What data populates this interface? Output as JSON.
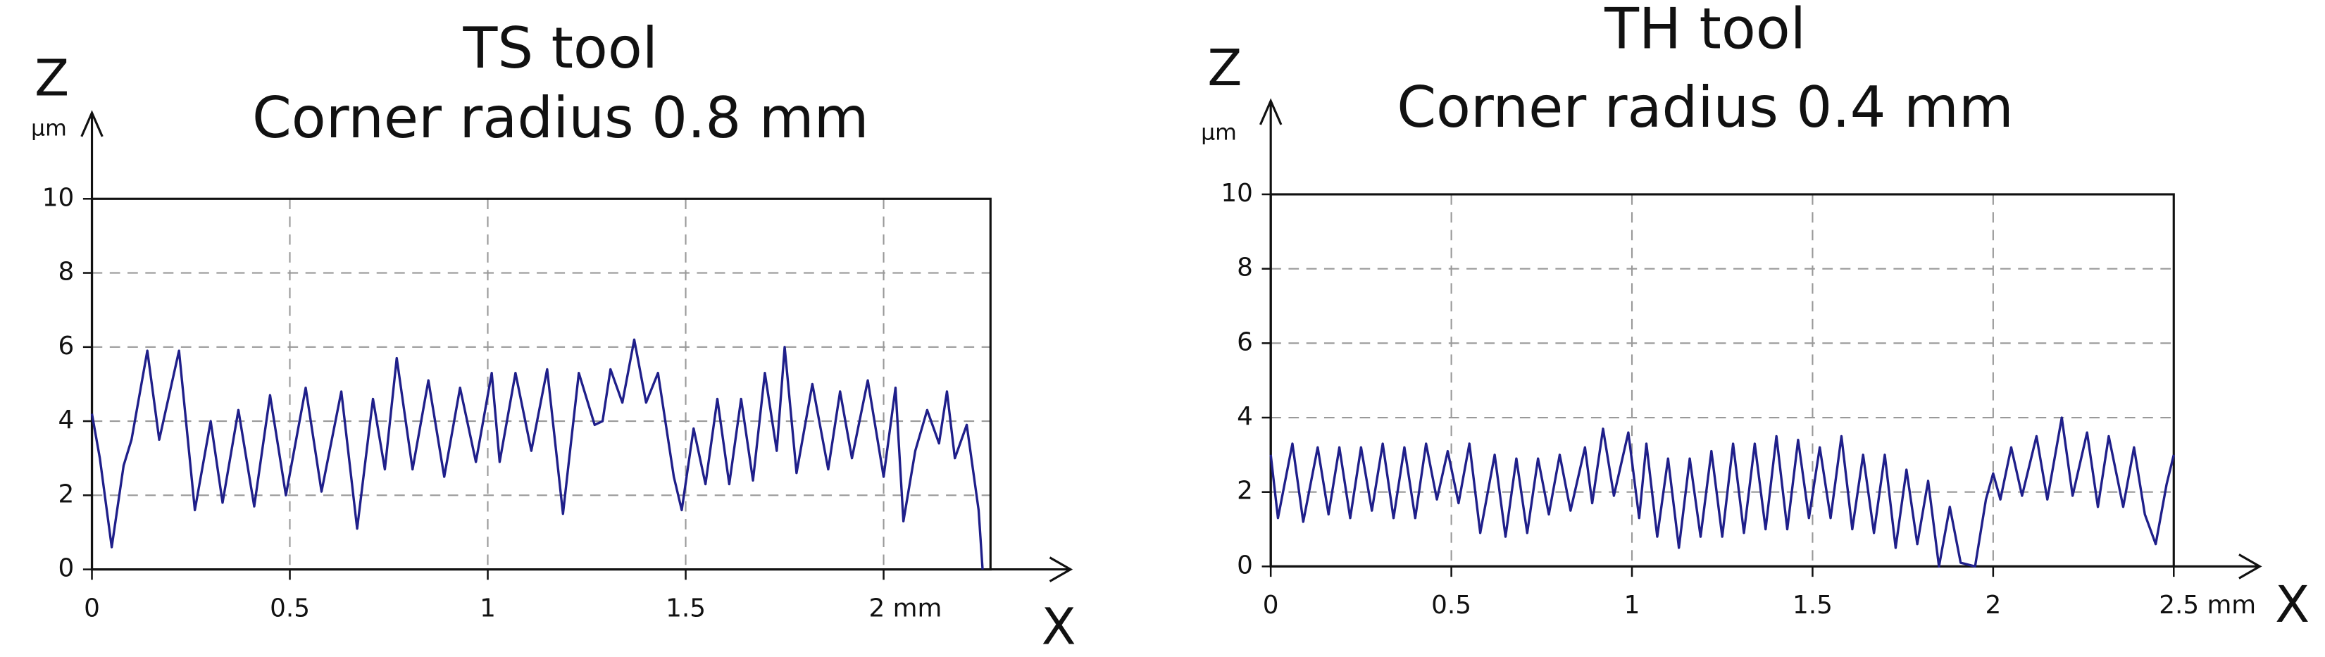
{
  "chart_data": [
    {
      "type": "line",
      "title": "TS tool",
      "subtitle": "Corner radius 0.8 mm",
      "y_label": "Z",
      "y_unit": "µm",
      "x_label": "X",
      "color": "#1f1f8a",
      "grid": true,
      "xlim": [
        0,
        2.27
      ],
      "ylim": [
        0,
        10
      ],
      "xticks": [
        0,
        0.5,
        1,
        1.5,
        {
          "value": 2,
          "label": "2 mm"
        }
      ],
      "yticks": [
        0,
        2,
        4,
        6,
        8,
        10
      ],
      "x": [
        0,
        0.02,
        0.05,
        0.08,
        0.1,
        0.14,
        0.17,
        0.22,
        0.26,
        0.3,
        0.33,
        0.37,
        0.41,
        0.45,
        0.49,
        0.54,
        0.58,
        0.63,
        0.67,
        0.71,
        0.74,
        0.77,
        0.81,
        0.85,
        0.89,
        0.93,
        0.97,
        1.01,
        1.03,
        1.07,
        1.11,
        1.15,
        1.19,
        1.23,
        1.27,
        1.29,
        1.31,
        1.34,
        1.37,
        1.4,
        1.43,
        1.47,
        1.49,
        1.52,
        1.55,
        1.58,
        1.61,
        1.64,
        1.67,
        1.7,
        1.73,
        1.75,
        1.78,
        1.82,
        1.86,
        1.89,
        1.92,
        1.96,
        2.0,
        2.03,
        2.05,
        2.08,
        2.11,
        2.14,
        2.16,
        2.18,
        2.21,
        2.24,
        2.25
      ],
      "values": [
        4.2,
        3.0,
        0.6,
        2.8,
        3.5,
        5.9,
        3.5,
        5.9,
        1.6,
        4.0,
        1.8,
        4.3,
        1.7,
        4.7,
        2.0,
        4.9,
        2.1,
        4.8,
        1.1,
        4.6,
        2.7,
        5.7,
        2.7,
        5.1,
        2.5,
        4.9,
        2.9,
        5.3,
        2.9,
        5.3,
        3.2,
        5.4,
        1.5,
        5.3,
        3.9,
        4.0,
        5.4,
        4.5,
        6.2,
        4.5,
        5.3,
        2.5,
        1.6,
        3.8,
        2.3,
        4.6,
        2.3,
        4.6,
        2.4,
        5.3,
        3.2,
        6.0,
        2.6,
        5.0,
        2.7,
        4.8,
        3.0,
        5.1,
        2.5,
        4.9,
        1.3,
        3.2,
        4.3,
        3.4,
        4.8,
        3.0,
        3.9,
        1.6,
        0.0
      ]
    },
    {
      "type": "line",
      "title": "TH tool",
      "subtitle": "Corner radius 0.4 mm",
      "y_label": "Z",
      "y_unit": "µm",
      "x_label": "X",
      "color": "#1f1f8a",
      "grid": true,
      "xlim": [
        0,
        2.5
      ],
      "ylim": [
        0,
        10
      ],
      "xticks": [
        0,
        0.5,
        1,
        1.5,
        2,
        {
          "value": 2.5,
          "label": "2.5 mm"
        }
      ],
      "yticks": [
        0,
        2,
        4,
        6,
        8,
        10
      ],
      "x": [
        0,
        0.02,
        0.06,
        0.09,
        0.13,
        0.16,
        0.19,
        0.22,
        0.25,
        0.28,
        0.31,
        0.34,
        0.37,
        0.4,
        0.43,
        0.46,
        0.49,
        0.52,
        0.55,
        0.58,
        0.62,
        0.65,
        0.68,
        0.71,
        0.74,
        0.77,
        0.8,
        0.83,
        0.87,
        0.89,
        0.92,
        0.95,
        0.99,
        1.02,
        1.04,
        1.07,
        1.1,
        1.13,
        1.16,
        1.19,
        1.22,
        1.25,
        1.28,
        1.31,
        1.34,
        1.37,
        1.4,
        1.43,
        1.46,
        1.49,
        1.52,
        1.55,
        1.58,
        1.61,
        1.64,
        1.67,
        1.7,
        1.73,
        1.76,
        1.79,
        1.82,
        1.85,
        1.88,
        1.91,
        1.95,
        1.98,
        2.0,
        2.02,
        2.05,
        2.08,
        2.12,
        2.15,
        2.19,
        2.22,
        2.26,
        2.29,
        2.32,
        2.36,
        2.39,
        2.42,
        2.45,
        2.48,
        2.5
      ],
      "values": [
        3.0,
        1.3,
        3.3,
        1.2,
        3.2,
        1.4,
        3.2,
        1.3,
        3.2,
        1.5,
        3.3,
        1.3,
        3.2,
        1.3,
        3.3,
        1.8,
        3.1,
        1.7,
        3.3,
        0.9,
        3.0,
        0.8,
        2.9,
        0.9,
        2.9,
        1.4,
        3.0,
        1.5,
        3.2,
        1.7,
        3.7,
        1.9,
        3.6,
        1.3,
        3.3,
        0.8,
        2.9,
        0.5,
        2.9,
        0.8,
        3.1,
        0.8,
        3.3,
        0.9,
        3.3,
        1.0,
        3.5,
        1.0,
        3.4,
        1.3,
        3.2,
        1.3,
        3.5,
        1.0,
        3.0,
        0.9,
        3.0,
        0.5,
        2.6,
        0.6,
        2.3,
        0.0,
        1.6,
        0.1,
        0.0,
        1.8,
        2.5,
        1.8,
        3.2,
        1.9,
        3.5,
        1.8,
        4.0,
        1.9,
        3.6,
        1.6,
        3.5,
        1.6,
        3.2,
        1.4,
        0.6,
        2.2,
        3.0
      ]
    }
  ]
}
